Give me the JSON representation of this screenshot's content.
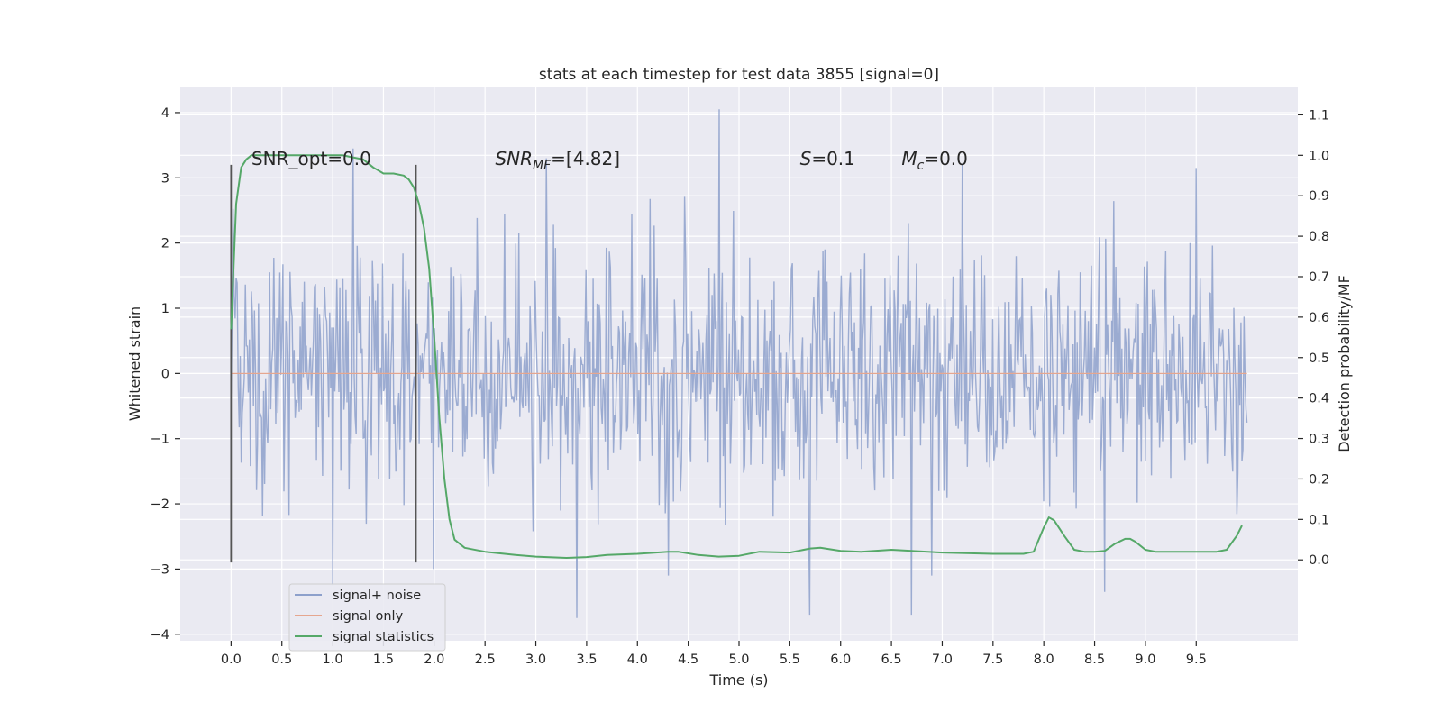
{
  "chart_data": {
    "type": "line",
    "title": "stats at each timestep for test data 3855 [signal=0]",
    "xlabel": "Time (s)",
    "ylabel": "Whitened strain",
    "y2label": "Detection probability/MF",
    "xlim": [
      -0.5,
      10.5
    ],
    "ylim": [
      -4.1,
      4.4
    ],
    "y2lim": [
      -0.2,
      1.17
    ],
    "x_ticks": [
      0.0,
      0.5,
      1.0,
      1.5,
      2.0,
      2.5,
      3.0,
      3.5,
      4.0,
      4.5,
      5.0,
      5.5,
      6.0,
      6.5,
      7.0,
      7.5,
      8.0,
      8.5,
      9.0,
      9.5
    ],
    "y_ticks": [
      -4,
      -3,
      -2,
      -1,
      0,
      1,
      2,
      3,
      4
    ],
    "y2_ticks": [
      0.0,
      0.1,
      0.2,
      0.3,
      0.4,
      0.5,
      0.6,
      0.7,
      0.8,
      0.9,
      1.0,
      1.1
    ],
    "grid": true,
    "legend_position": "lower-left",
    "annotations": [
      {
        "text": "SNR_opt=0.0",
        "x": 0.2,
        "y": 3.2
      },
      {
        "text": "SNR_MF=[4.82]",
        "x": 2.6,
        "y": 3.2
      },
      {
        "text": "S=0.1",
        "x": 5.6,
        "y": 3.2
      },
      {
        "text": "M_c=0.0",
        "x": 6.6,
        "y": 3.2
      }
    ],
    "vlines": [
      {
        "x": 0.0,
        "ymin": -2.9,
        "ymax": 3.2
      },
      {
        "x": 1.82,
        "ymin": -2.9,
        "ymax": 3.2
      }
    ],
    "series": [
      {
        "name": "signal+ noise",
        "axis": "left",
        "color": "#8da0cb",
        "x_range": [
          0.0,
          10.0
        ],
        "samples": 1000,
        "seed": 3855,
        "std": 0.95,
        "extremes": [
          {
            "x": 4.8,
            "y": 4.05
          },
          {
            "x": 3.4,
            "y": -3.75
          },
          {
            "x": 5.7,
            "y": -3.7
          },
          {
            "x": 6.7,
            "y": -3.7
          },
          {
            "x": 1.0,
            "y": -3.25
          },
          {
            "x": 8.6,
            "y": -3.35
          },
          {
            "x": 9.5,
            "y": 3.15
          },
          {
            "x": 7.2,
            "y": 3.2
          },
          {
            "x": 1.2,
            "y": 3.45
          },
          {
            "x": 3.1,
            "y": 3.3
          },
          {
            "x": 6.9,
            "y": -3.1
          },
          {
            "x": 4.3,
            "y": -3.1
          }
        ]
      },
      {
        "name": "signal only",
        "axis": "left",
        "color": "#e5a68f",
        "x": [
          0.0,
          10.0
        ],
        "y": [
          0.0,
          0.0
        ]
      },
      {
        "name": "signal statistics",
        "axis": "right",
        "color": "#55a868",
        "x": [
          0.0,
          0.05,
          0.1,
          0.15,
          0.2,
          0.3,
          0.5,
          0.8,
          1.0,
          1.1,
          1.2,
          1.3,
          1.4,
          1.5,
          1.6,
          1.7,
          1.75,
          1.8,
          1.85,
          1.9,
          1.95,
          2.0,
          2.05,
          2.1,
          2.15,
          2.2,
          2.3,
          2.5,
          2.8,
          3.0,
          3.3,
          3.5,
          3.7,
          4.0,
          4.3,
          4.4,
          4.6,
          4.8,
          5.0,
          5.2,
          5.5,
          5.7,
          5.8,
          6.0,
          6.2,
          6.5,
          6.7,
          7.0,
          7.5,
          7.8,
          7.9,
          8.0,
          8.05,
          8.1,
          8.2,
          8.3,
          8.4,
          8.5,
          8.6,
          8.7,
          8.8,
          8.85,
          8.9,
          9.0,
          9.1,
          9.3,
          9.5,
          9.7,
          9.8,
          9.9,
          9.95
        ],
        "y": [
          0.57,
          0.88,
          0.97,
          0.99,
          1.0,
          1.0,
          1.0,
          1.0,
          1.0,
          1.0,
          0.995,
          0.99,
          0.97,
          0.955,
          0.955,
          0.95,
          0.94,
          0.92,
          0.88,
          0.82,
          0.72,
          0.55,
          0.35,
          0.2,
          0.1,
          0.05,
          0.03,
          0.02,
          0.012,
          0.008,
          0.005,
          0.007,
          0.012,
          0.015,
          0.02,
          0.02,
          0.012,
          0.008,
          0.01,
          0.02,
          0.018,
          0.028,
          0.03,
          0.022,
          0.02,
          0.025,
          0.022,
          0.018,
          0.015,
          0.015,
          0.02,
          0.08,
          0.105,
          0.098,
          0.06,
          0.025,
          0.02,
          0.02,
          0.022,
          0.04,
          0.052,
          0.052,
          0.045,
          0.025,
          0.02,
          0.02,
          0.02,
          0.02,
          0.025,
          0.06,
          0.085
        ]
      }
    ]
  }
}
